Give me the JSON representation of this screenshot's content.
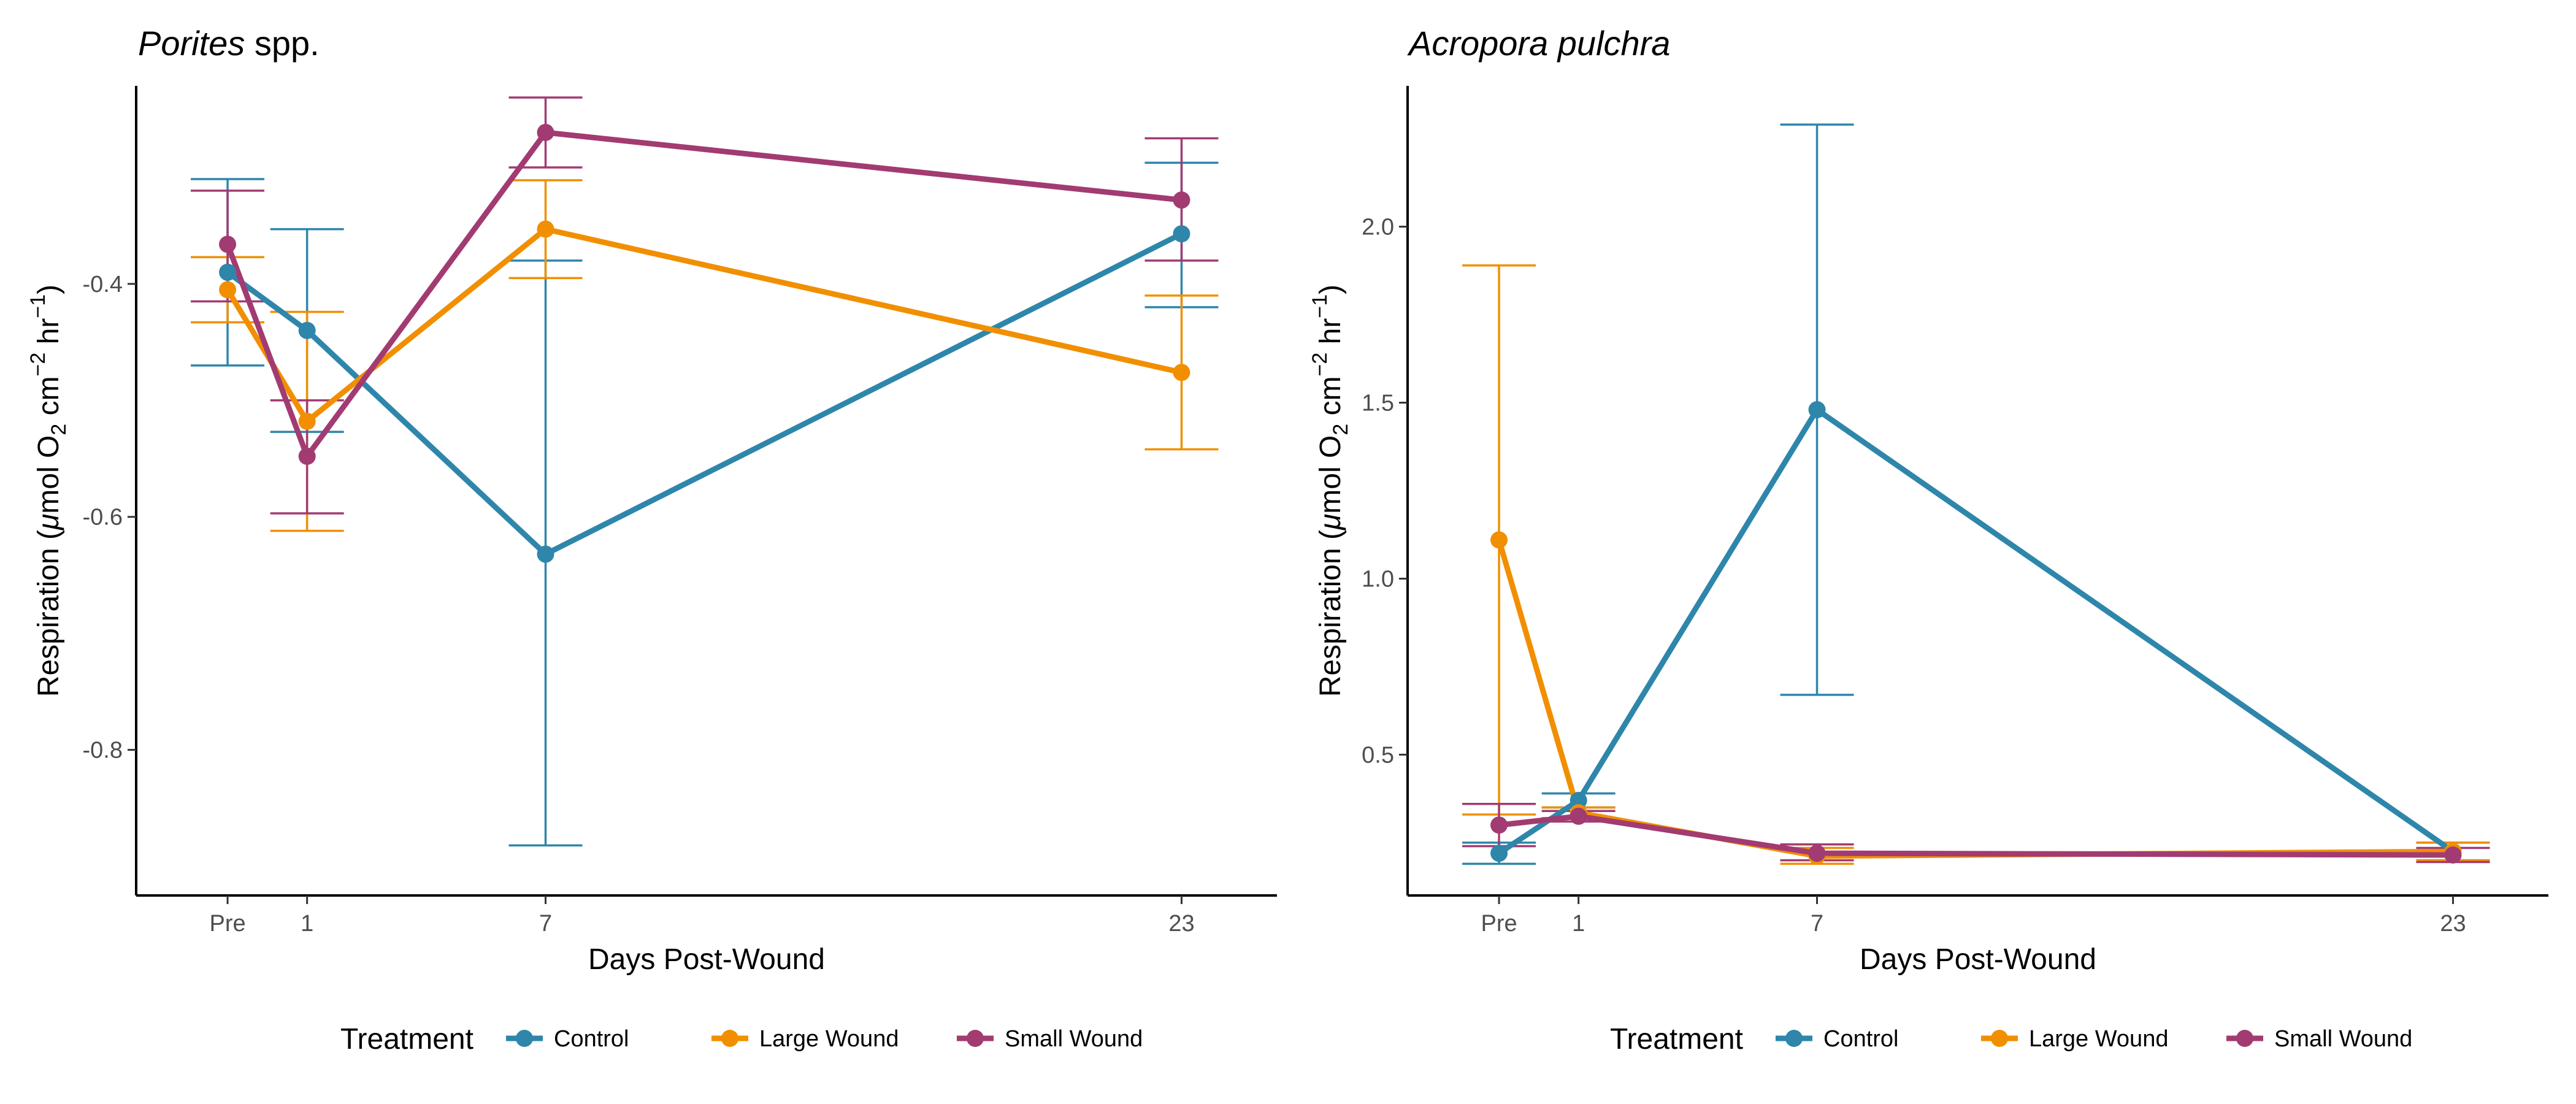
{
  "legend": {
    "title": "Treatment",
    "entries": [
      {
        "name": "Control",
        "color": "#2E86AB"
      },
      {
        "name": "Large Wound",
        "color": "#F18F01"
      },
      {
        "name": "Small Wound",
        "color": "#A23B72"
      }
    ]
  },
  "chart_data": [
    {
      "type": "line",
      "title_italic": "Porites",
      "title_rest": " spp.",
      "xlabel": "Days Post-Wound",
      "ylabel_parts": [
        "Respiration (",
        "μ",
        "mol O",
        "2",
        " cm",
        "−2",
        " hr",
        "−1",
        ")"
      ],
      "x_categories": [
        "Pre",
        "1",
        "7",
        "23"
      ],
      "x_positions": [
        -1,
        1,
        7,
        23
      ],
      "xlim": [
        -3.3,
        25.4
      ],
      "ylim": [
        -0.925,
        -0.23
      ],
      "yticks": [
        -0.8,
        -0.6,
        -0.4
      ],
      "ytick_labels": [
        "-0.8",
        "-0.6",
        "-0.4"
      ],
      "grid": false,
      "series": [
        {
          "name": "Control",
          "color": "#2E86AB",
          "y": [
            -0.39,
            -0.44,
            -0.632,
            -0.357
          ],
          "lo": [
            -0.47,
            -0.527,
            -0.882,
            -0.42
          ],
          "hi": [
            -0.31,
            -0.353,
            -0.38,
            -0.296
          ]
        },
        {
          "name": "Large Wound",
          "color": "#F18F01",
          "y": [
            -0.405,
            -0.518,
            -0.353,
            -0.476
          ],
          "lo": [
            -0.433,
            -0.612,
            -0.395,
            -0.542
          ],
          "hi": [
            -0.377,
            -0.424,
            -0.311,
            -0.41
          ]
        },
        {
          "name": "Small Wound",
          "color": "#A23B72",
          "y": [
            -0.366,
            -0.548,
            -0.27,
            -0.328
          ],
          "lo": [
            -0.415,
            -0.597,
            -0.3,
            -0.38
          ],
          "hi": [
            -0.32,
            -0.5,
            -0.24,
            -0.275
          ]
        }
      ]
    },
    {
      "type": "line",
      "title_italic": "Acropora pulchra",
      "title_rest": "",
      "xlabel": "Days Post-Wound",
      "ylabel_parts": [
        "Respiration (",
        "μ",
        "mol O",
        "2",
        " cm",
        "−2",
        " hr",
        "−1",
        ")"
      ],
      "x_categories": [
        "Pre",
        "1",
        "7",
        "23"
      ],
      "x_positions": [
        -1,
        1,
        7,
        23
      ],
      "xlim": [
        -3.3,
        25.4
      ],
      "ylim": [
        0.1,
        2.4
      ],
      "yticks": [
        0.5,
        1.0,
        1.5,
        2.0
      ],
      "ytick_labels": [
        "0.5",
        "1.0",
        "1.5",
        "2.0"
      ],
      "grid": false,
      "series": [
        {
          "name": "Control",
          "color": "#2E86AB",
          "y": [
            0.22,
            0.37,
            1.48,
            0.225
          ],
          "lo": [
            0.19,
            0.35,
            0.67,
            0.2
          ],
          "hi": [
            0.25,
            0.39,
            2.29,
            0.25
          ]
        },
        {
          "name": "Large Wound",
          "color": "#F18F01",
          "y": [
            1.11,
            0.335,
            0.212,
            0.225
          ],
          "lo": [
            0.33,
            0.32,
            0.19,
            0.2
          ],
          "hi": [
            1.89,
            0.35,
            0.235,
            0.25
          ]
        },
        {
          "name": "Small Wound",
          "color": "#A23B72",
          "y": [
            0.3,
            0.325,
            0.22,
            0.215
          ],
          "lo": [
            0.24,
            0.31,
            0.2,
            0.195
          ],
          "hi": [
            0.36,
            0.34,
            0.245,
            0.235
          ]
        }
      ]
    }
  ]
}
